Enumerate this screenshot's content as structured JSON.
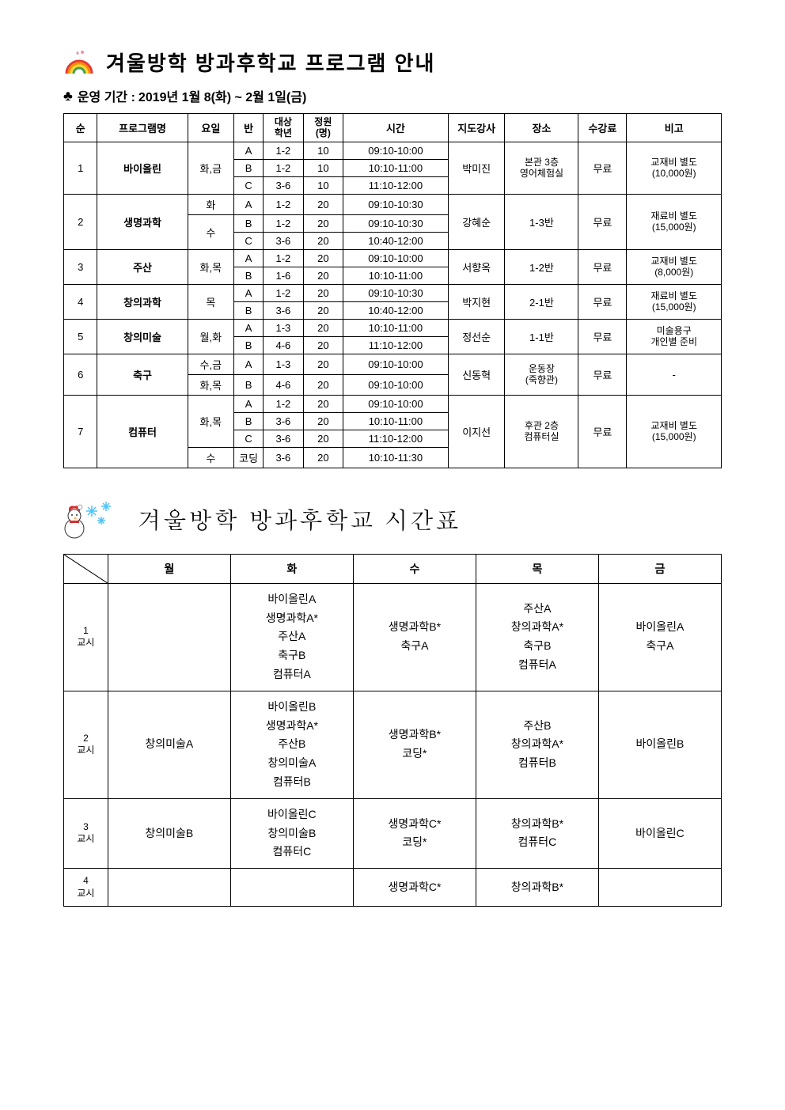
{
  "title": "겨울방학 방과후학교 프로그램 안내",
  "period_label": "운영 기간 :",
  "period_value": "2019년 1월 8(화) ~ 2월 1일(금)",
  "program_headers": {
    "no": "순",
    "program": "프로그램명",
    "days": "요일",
    "class": "반",
    "grade_l1": "대상",
    "grade_l2": "학년",
    "cap_l1": "정원",
    "cap_l2": "(명)",
    "time": "시간",
    "teacher": "지도강사",
    "place": "장소",
    "fee": "수강료",
    "note": "비고"
  },
  "programs": [
    {
      "no": "1",
      "name": "바이올린",
      "days": "화,금",
      "rows": [
        {
          "class": "A",
          "grade": "1-2",
          "cap": "10",
          "time": "09:10-10:00"
        },
        {
          "class": "B",
          "grade": "1-2",
          "cap": "10",
          "time": "10:10-11:00"
        },
        {
          "class": "C",
          "grade": "3-6",
          "cap": "10",
          "time": "11:10-12:00"
        }
      ],
      "teacher": "박미진",
      "place_l1": "본관 3층",
      "place_l2": "영어체험실",
      "fee": "무료",
      "note_l1": "교재비 별도",
      "note_l2": "(10,000원)"
    },
    {
      "no": "2",
      "name": "생명과학",
      "day_rows": [
        {
          "day": "화",
          "span": 1
        },
        {
          "day": "수",
          "span": 2
        }
      ],
      "rows": [
        {
          "class": "A",
          "grade": "1-2",
          "cap": "20",
          "time": "09:10-10:30"
        },
        {
          "class": "B",
          "grade": "1-2",
          "cap": "20",
          "time": "09:10-10:30"
        },
        {
          "class": "C",
          "grade": "3-6",
          "cap": "20",
          "time": "10:40-12:00"
        }
      ],
      "teacher": "강혜순",
      "place": "1-3반",
      "fee": "무료",
      "note_l1": "재료비 별도",
      "note_l2": "(15,000원)"
    },
    {
      "no": "3",
      "name": "주산",
      "days": "화,목",
      "rows": [
        {
          "class": "A",
          "grade": "1-2",
          "cap": "20",
          "time": "09:10-10:00"
        },
        {
          "class": "B",
          "grade": "1-6",
          "cap": "20",
          "time": "10:10-11:00"
        }
      ],
      "teacher": "서향옥",
      "place": "1-2반",
      "fee": "무료",
      "note_l1": "교재비 별도",
      "note_l2": "(8,000원)"
    },
    {
      "no": "4",
      "name": "창의과학",
      "days": "목",
      "rows": [
        {
          "class": "A",
          "grade": "1-2",
          "cap": "20",
          "time": "09:10-10:30"
        },
        {
          "class": "B",
          "grade": "3-6",
          "cap": "20",
          "time": "10:40-12:00"
        }
      ],
      "teacher": "박지현",
      "place": "2-1반",
      "fee": "무료",
      "note_l1": "재료비 별도",
      "note_l2": "(15,000원)"
    },
    {
      "no": "5",
      "name": "창의미술",
      "days": "월,화",
      "rows": [
        {
          "class": "A",
          "grade": "1-3",
          "cap": "20",
          "time": "10:10-11:00"
        },
        {
          "class": "B",
          "grade": "4-6",
          "cap": "20",
          "time": "11:10-12:00"
        }
      ],
      "teacher": "정선순",
      "place": "1-1반",
      "fee": "무료",
      "note_l1": "미술용구",
      "note_l2": "개인별 준비"
    },
    {
      "no": "6",
      "name": "축구",
      "day_rows": [
        {
          "day": "수,금",
          "span": 1
        },
        {
          "day": "화,목",
          "span": 1
        }
      ],
      "rows": [
        {
          "class": "A",
          "grade": "1-3",
          "cap": "20",
          "time": "09:10-10:00"
        },
        {
          "class": "B",
          "grade": "4-6",
          "cap": "20",
          "time": "09:10-10:00"
        }
      ],
      "teacher": "신동혁",
      "place_l1": "운동장",
      "place_l2": "(죽향관)",
      "fee": "무료",
      "note": "-"
    },
    {
      "no": "7",
      "name": "컴퓨터",
      "day_rows": [
        {
          "day": "화,목",
          "span": 3
        },
        {
          "day": "수",
          "span": 1
        }
      ],
      "rows": [
        {
          "class": "A",
          "grade": "1-2",
          "cap": "20",
          "time": "09:10-10:00"
        },
        {
          "class": "B",
          "grade": "3-6",
          "cap": "20",
          "time": "10:10-11:00"
        },
        {
          "class": "C",
          "grade": "3-6",
          "cap": "20",
          "time": "11:10-12:00"
        },
        {
          "class": "코딩",
          "grade": "3-6",
          "cap": "20",
          "time": "10:10-11:30"
        }
      ],
      "teacher": "이지선",
      "place_l1": "후관 2층",
      "place_l2": "컴퓨터실",
      "fee": "무료",
      "note_l1": "교재비 별도",
      "note_l2": "(15,000원)"
    }
  ],
  "timetable_title": "겨울방학 방과후학교 시간표",
  "timetable_headers": {
    "mon": "월",
    "tue": "화",
    "wed": "수",
    "thu": "목",
    "fri": "금"
  },
  "periods": [
    {
      "label_l1": "1",
      "label_l2": "교시",
      "mon": "",
      "tue": "바이올린A\n생명과학A*\n주산A\n축구B\n컴퓨터A",
      "wed": "생명과학B*\n축구A",
      "thu": "주산A\n창의과학A*\n축구B\n컴퓨터A",
      "fri": "바이올린A\n축구A"
    },
    {
      "label_l1": "2",
      "label_l2": "교시",
      "mon": "창의미술A",
      "tue": "바이올린B\n생명과학A*\n주산B\n창의미술A\n컴퓨터B",
      "wed": "생명과학B*\n코딩*",
      "thu": "주산B\n창의과학A*\n컴퓨터B",
      "fri": "바이올린B"
    },
    {
      "label_l1": "3",
      "label_l2": "교시",
      "mon": "창의미술B",
      "tue": "바이올린C\n창의미술B\n컴퓨터C",
      "wed": "생명과학C*\n코딩*",
      "thu": "창의과학B*\n컴퓨터C",
      "fri": "바이올린C"
    },
    {
      "label_l1": "4",
      "label_l2": "교시",
      "mon": "",
      "tue": "",
      "wed": "생명과학C*",
      "thu": "창의과학B*",
      "fri": ""
    }
  ],
  "colors": {
    "rainbow": {
      "red": "#e53935",
      "orange": "#fb8c00",
      "yellow": "#fdd835",
      "green": "#43a047",
      "blue": "#1e88e5"
    },
    "snowman_body": "#ffffff",
    "snowman_outline": "#333",
    "santa_hat": "#d32f2f",
    "snowflake": "#4fc3f7"
  }
}
